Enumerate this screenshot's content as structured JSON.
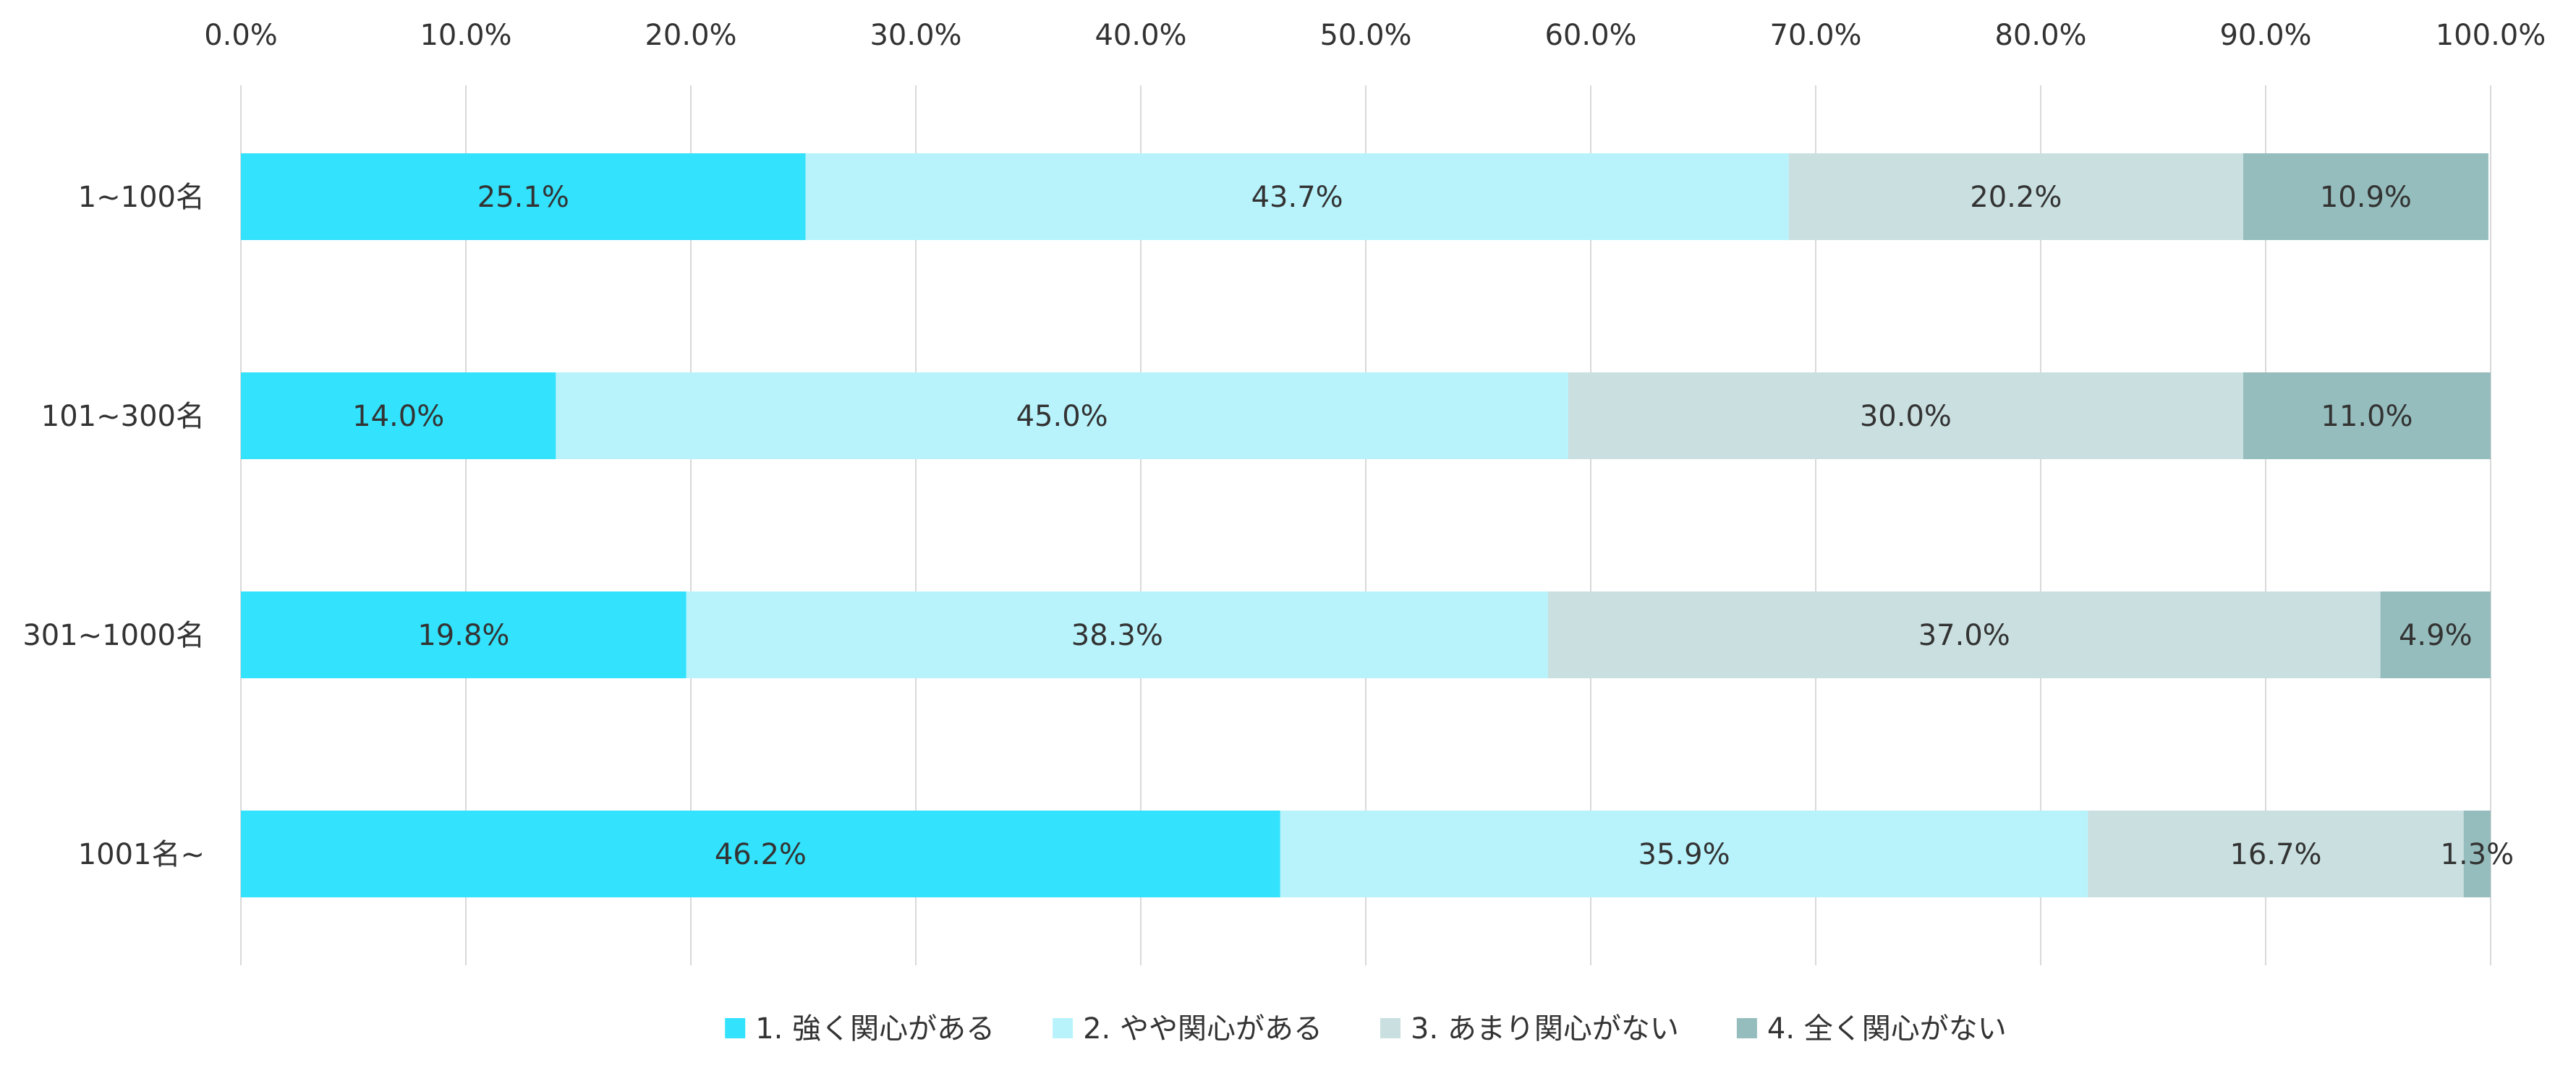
{
  "chart_data": {
    "type": "bar",
    "orientation": "horizontal",
    "stacked": "percent",
    "categories": [
      "1~100名",
      "101~300名",
      "301~1000名",
      "1001名~"
    ],
    "series": [
      {
        "name": "1.  強く関心がある",
        "color": "#33e2fc",
        "values": [
          25.1,
          14.0,
          19.8,
          46.2
        ]
      },
      {
        "name": "2.  やや関心がある",
        "color": "#b8f3fc",
        "values": [
          43.7,
          45.0,
          38.3,
          35.9
        ]
      },
      {
        "name": "3.  あまり関心がない",
        "color": "#cadfe0",
        "values": [
          20.2,
          30.0,
          37.0,
          16.7
        ]
      },
      {
        "name": "4.  全く関心がない",
        "color": "#96bdbd",
        "values": [
          10.9,
          11.0,
          4.9,
          1.3
        ]
      }
    ],
    "x_ticks": [
      "0.0%",
      "10.0%",
      "20.0%",
      "30.0%",
      "40.0%",
      "50.0%",
      "60.0%",
      "70.0%",
      "80.0%",
      "90.0%",
      "100.0%"
    ],
    "xlim": [
      0,
      100
    ],
    "x_axis_position": "top",
    "grid": true,
    "legend": "bottom",
    "title": "",
    "xlabel": "",
    "ylabel": ""
  }
}
